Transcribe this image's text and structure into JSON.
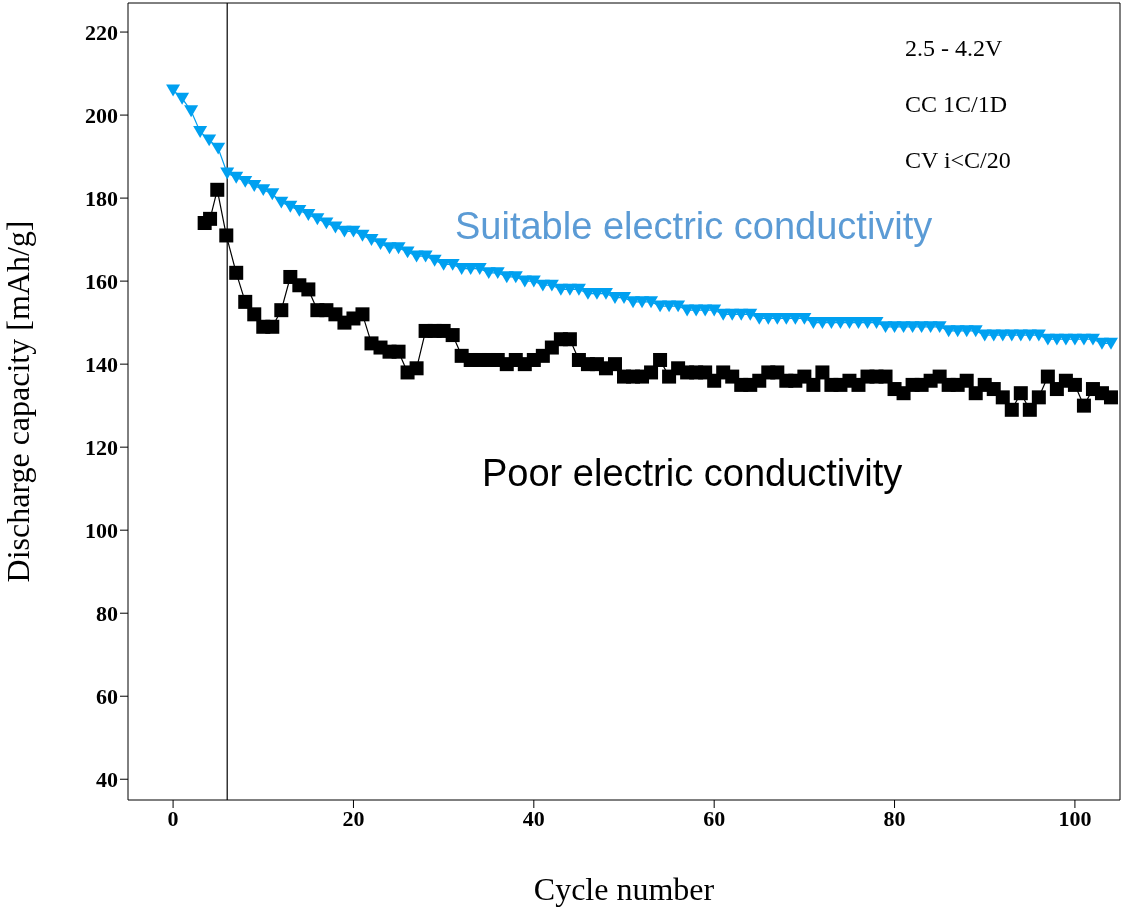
{
  "chart_data": {
    "type": "line",
    "xlabel": "Cycle number",
    "ylabel": "Discharge capacity [mAh/g]",
    "xlim": [
      -5,
      105
    ],
    "xticks": [
      0,
      20,
      40,
      60,
      80,
      100
    ],
    "ylim": [
      35,
      227
    ],
    "yticks": [
      40,
      60,
      80,
      100,
      120,
      140,
      160,
      180,
      200,
      220
    ],
    "grid": false,
    "legend": false,
    "line_style": "solid",
    "annotations": [
      "2.5 - 4.2V",
      "CC 1C/1D",
      "CV i<C/20"
    ],
    "ref_lines": [
      {
        "axis": "x",
        "value": 6,
        "color": "#000000"
      }
    ],
    "series": [
      {
        "name": "Suitable electric conductivity",
        "color": "#00a0f0",
        "marker": "triangle",
        "x": [
          0,
          1,
          2,
          3,
          4,
          5,
          6,
          7,
          8,
          9,
          10,
          11,
          12,
          13,
          14,
          15,
          16,
          17,
          18,
          19,
          20,
          21,
          22,
          23,
          24,
          25,
          26,
          27,
          28,
          29,
          30,
          31,
          32,
          33,
          34,
          35,
          36,
          37,
          38,
          39,
          40,
          41,
          42,
          43,
          44,
          45,
          46,
          47,
          48,
          49,
          50,
          51,
          52,
          53,
          54,
          55,
          56,
          57,
          58,
          59,
          60,
          61,
          62,
          63,
          64,
          65,
          66,
          67,
          68,
          69,
          70,
          71,
          72,
          73,
          74,
          75,
          76,
          77,
          78,
          79,
          80,
          81,
          82,
          83,
          84,
          85,
          86,
          87,
          88,
          89,
          90,
          91,
          92,
          93,
          94,
          95,
          96,
          97,
          98,
          99,
          100,
          101,
          102,
          103,
          104
        ],
        "values": [
          206,
          204,
          201,
          196,
          194,
          192,
          186,
          185,
          184,
          183,
          182,
          181,
          179,
          178,
          177,
          176,
          175,
          174,
          173,
          172,
          172,
          171,
          170,
          169,
          168,
          168,
          167,
          166,
          166,
          165,
          164,
          164,
          163,
          163,
          163,
          162,
          162,
          161,
          161,
          160,
          160,
          159,
          159,
          158,
          158,
          158,
          157,
          157,
          157,
          156,
          156,
          155,
          155,
          155,
          154,
          154,
          154,
          153,
          153,
          153,
          153,
          152,
          152,
          152,
          152,
          151,
          151,
          151,
          151,
          151,
          151,
          150,
          150,
          150,
          150,
          150,
          150,
          150,
          150,
          149,
          149,
          149,
          149,
          149,
          149,
          149,
          148,
          148,
          148,
          148,
          147,
          147,
          147,
          147,
          147,
          147,
          147,
          146,
          146,
          146,
          146,
          146,
          146,
          145,
          145
        ]
      },
      {
        "name": "Poor electric conductivity",
        "color": "#000000",
        "marker": "square",
        "x": [
          3.5,
          4.1,
          4.9,
          5.9,
          7,
          8,
          9,
          10,
          11,
          12,
          13,
          14,
          15,
          16,
          17,
          18,
          19,
          20,
          21,
          22,
          23,
          24,
          25,
          26,
          27,
          28,
          29,
          30,
          31,
          32,
          33,
          34,
          35,
          36,
          37,
          38,
          39,
          40,
          41,
          42,
          43,
          44,
          45,
          46,
          47,
          48,
          49,
          50,
          51,
          52,
          53,
          54,
          55,
          56,
          57,
          58,
          59,
          60,
          61,
          62,
          63,
          64,
          65,
          66,
          67,
          68,
          69,
          70,
          71,
          72,
          73,
          74,
          75,
          76,
          77,
          78,
          79,
          80,
          81,
          82,
          83,
          84,
          85,
          86,
          87,
          88,
          89,
          90,
          91,
          92,
          93,
          94,
          95,
          96,
          97,
          98,
          99,
          100,
          101,
          102,
          103,
          104
        ],
        "values": [
          174,
          175,
          182,
          171,
          162,
          155,
          152,
          149,
          149,
          153,
          161,
          159,
          158,
          153,
          153,
          152,
          150,
          151,
          152,
          145,
          144,
          143,
          143,
          138,
          139,
          148,
          148,
          148,
          147,
          142,
          141,
          141,
          141,
          141,
          140,
          141,
          140,
          141,
          142,
          144,
          146,
          146,
          141,
          140,
          140,
          139,
          140,
          137,
          137,
          137,
          138,
          141,
          137,
          139,
          138,
          138,
          138,
          136,
          138,
          137,
          135,
          135,
          136,
          138,
          138,
          136,
          136,
          137,
          135,
          138,
          135,
          135,
          136,
          135,
          137,
          137,
          137,
          134,
          133,
          135,
          135,
          136,
          137,
          135,
          135,
          136,
          133,
          135,
          134,
          132,
          129,
          133,
          129,
          132,
          137,
          134,
          136,
          135,
          130,
          134,
          133,
          132
        ]
      }
    ]
  }
}
